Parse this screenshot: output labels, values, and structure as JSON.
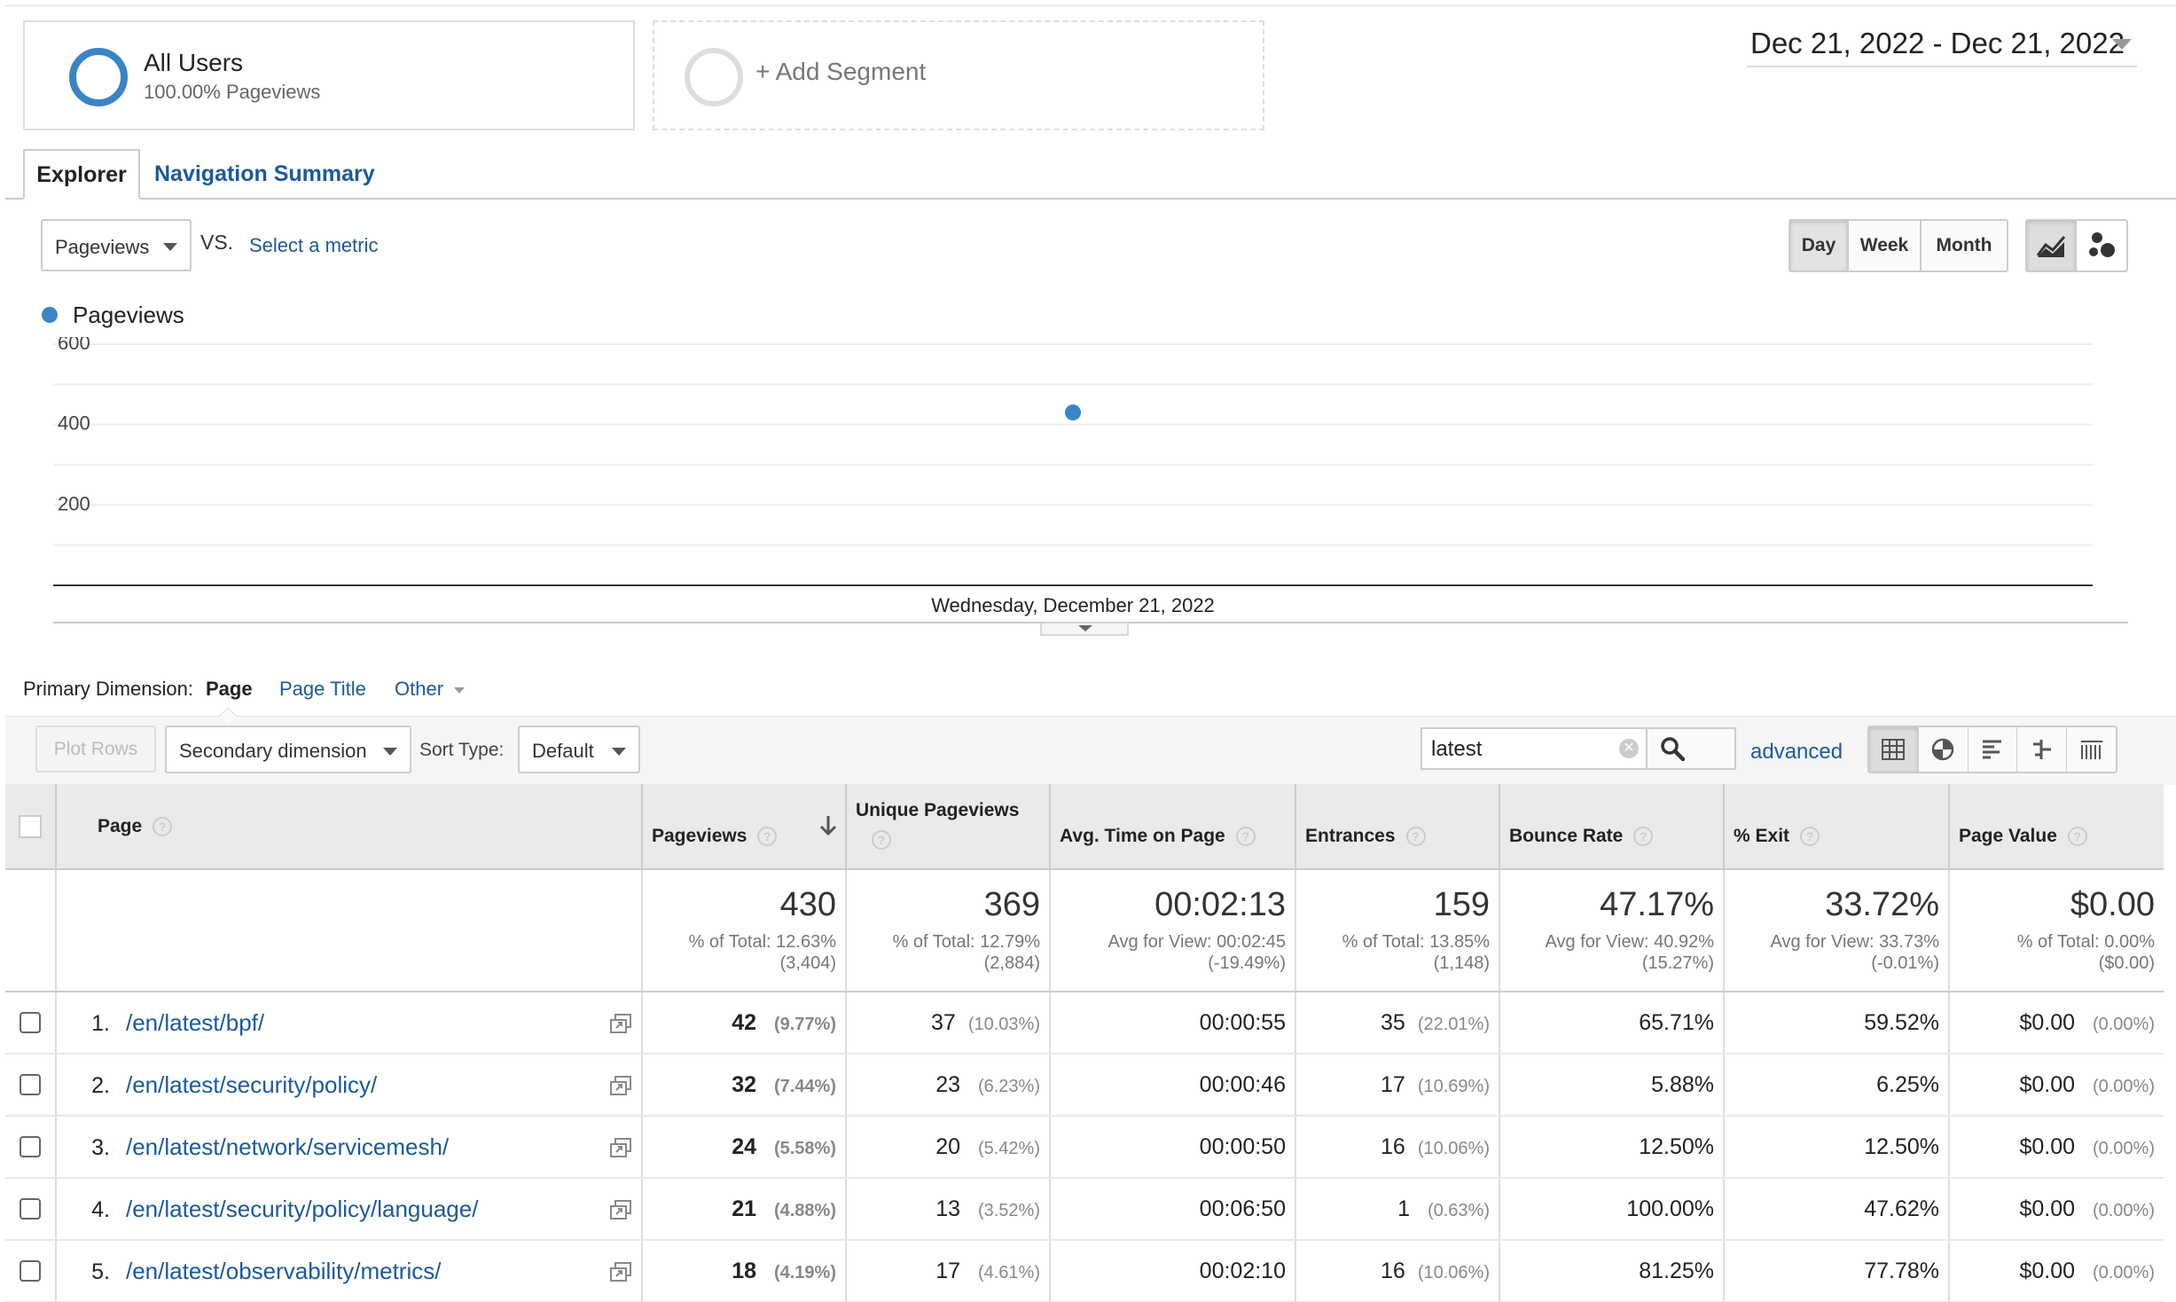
{
  "segments": {
    "active": {
      "title": "All Users",
      "subtitle": "100.00% Pageviews"
    },
    "add_label": "+ Add Segment"
  },
  "date_range": "Dec 21, 2022 - Dec 21, 2022",
  "tabs": [
    {
      "label": "Explorer"
    },
    {
      "label": "Navigation Summary"
    }
  ],
  "metric_row": {
    "metric": "Pageviews",
    "vs": "VS.",
    "select_metric": "Select a metric",
    "periods": [
      "Day",
      "Week",
      "Month"
    ],
    "active_period": "Day"
  },
  "chart_data": {
    "type": "scatter",
    "series": [
      {
        "name": "Pageviews",
        "color": "#3a84c5",
        "values": [
          430
        ]
      }
    ],
    "x": [
      "Wednesday, December 21, 2022"
    ],
    "yticks": [
      200,
      400,
      600
    ],
    "ylim": [
      0,
      600
    ],
    "grid": true,
    "legend": "top-left"
  },
  "primary_dimension": {
    "label": "Primary Dimension:",
    "active": "Page",
    "options": [
      "Page Title",
      "Other"
    ]
  },
  "toolbar": {
    "plot_rows": "Plot Rows",
    "secondary_dimension": "Secondary dimension",
    "sort_label": "Sort Type:",
    "sort_value": "Default",
    "search_value": "latest",
    "advanced": "advanced"
  },
  "table": {
    "headers": {
      "page": "Page",
      "pageviews": "Pageviews",
      "unique": "Unique Pageviews",
      "avg_time": "Avg. Time on Page",
      "entrances": "Entrances",
      "bounce": "Bounce Rate",
      "exit": "% Exit",
      "value": "Page Value"
    },
    "totals": {
      "pageviews": {
        "value": "430",
        "sub1": "% of Total: 12.63%",
        "sub2": "(3,404)"
      },
      "unique": {
        "value": "369",
        "sub1": "% of Total: 12.79%",
        "sub2": "(2,884)"
      },
      "avg_time": {
        "value": "00:02:13",
        "sub1": "Avg for View: 00:02:45",
        "sub2": "(-19.49%)"
      },
      "entrances": {
        "value": "159",
        "sub1": "% of Total: 13.85%",
        "sub2": "(1,148)"
      },
      "bounce": {
        "value": "47.17%",
        "sub1": "Avg for View: 40.92%",
        "sub2": "(15.27%)"
      },
      "exit": {
        "value": "33.72%",
        "sub1": "Avg for View: 33.73%",
        "sub2": "(-0.01%)"
      },
      "value": {
        "value": "$0.00",
        "sub1": "% of Total: 0.00%",
        "sub2": "($0.00)"
      }
    },
    "rows": [
      {
        "rank": "1.",
        "page": "/en/latest/bpf/",
        "pv": "42",
        "pv_pct": "(9.77%)",
        "upv": "37",
        "upv_pct": "(10.03%)",
        "time": "00:00:55",
        "ent": "35",
        "ent_pct": "(22.01%)",
        "bounce": "65.71%",
        "exit": "59.52%",
        "value": "$0.00",
        "value_pct": "(0.00%)"
      },
      {
        "rank": "2.",
        "page": "/en/latest/security/policy/",
        "pv": "32",
        "pv_pct": "(7.44%)",
        "upv": "23",
        "upv_pct": "(6.23%)",
        "time": "00:00:46",
        "ent": "17",
        "ent_pct": "(10.69%)",
        "bounce": "5.88%",
        "exit": "6.25%",
        "value": "$0.00",
        "value_pct": "(0.00%)"
      },
      {
        "rank": "3.",
        "page": "/en/latest/network/servicemesh/",
        "pv": "24",
        "pv_pct": "(5.58%)",
        "upv": "20",
        "upv_pct": "(5.42%)",
        "time": "00:00:50",
        "ent": "16",
        "ent_pct": "(10.06%)",
        "bounce": "12.50%",
        "exit": "12.50%",
        "value": "$0.00",
        "value_pct": "(0.00%)"
      },
      {
        "rank": "4.",
        "page": "/en/latest/security/policy/language/",
        "pv": "21",
        "pv_pct": "(4.88%)",
        "upv": "13",
        "upv_pct": "(3.52%)",
        "time": "00:06:50",
        "ent": "1",
        "ent_pct": "(0.63%)",
        "bounce": "100.00%",
        "exit": "47.62%",
        "value": "$0.00",
        "value_pct": "(0.00%)"
      },
      {
        "rank": "5.",
        "page": "/en/latest/observability/metrics/",
        "pv": "18",
        "pv_pct": "(4.19%)",
        "upv": "17",
        "upv_pct": "(4.61%)",
        "time": "00:02:10",
        "ent": "16",
        "ent_pct": "(10.06%)",
        "bounce": "81.25%",
        "exit": "77.78%",
        "value": "$0.00",
        "value_pct": "(0.00%)"
      }
    ]
  },
  "icons": {
    "search": "search-icon",
    "clear": "clear-icon",
    "open_page": "open-page-icon",
    "line_chart": "line-chart-icon",
    "bubble_chart": "bubble-chart-icon",
    "sort": "sort-desc-arrow-icon"
  }
}
